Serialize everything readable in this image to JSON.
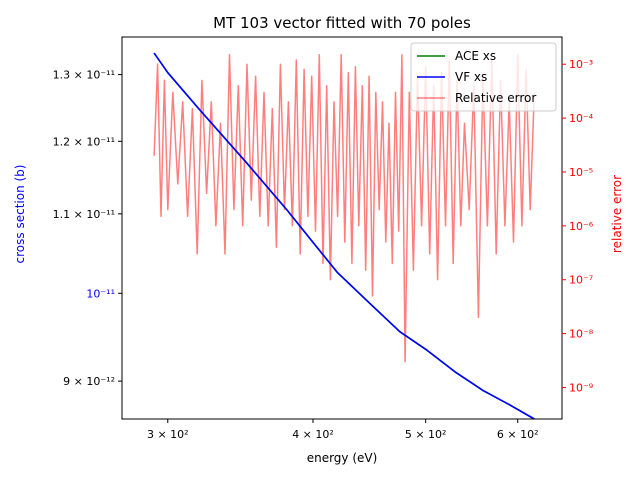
{
  "chart_data": {
    "type": "line",
    "title": "MT 103 vector fitted with 70 poles",
    "xlabel": "energy (eV)",
    "ylabel_left": "cross section (b)",
    "ylabel_right": "relative error",
    "x_scale": "log",
    "y_left_scale": "log",
    "y_right_scale": "log",
    "xlim": [
      274,
      655
    ],
    "ylim_left": [
      8.6e-12,
      1.36e-11
    ],
    "ylim_right": [
      2.6e-10,
      0.0032
    ],
    "x_ticks": [
      {
        "value": 300,
        "label": "3 × 10²"
      },
      {
        "value": 400,
        "label": "4 × 10²"
      },
      {
        "value": 500,
        "label": "5 × 10²"
      },
      {
        "value": 600,
        "label": "6 × 10²"
      }
    ],
    "y_left_ticks": [
      {
        "value": 9e-12,
        "label": "9 × 10⁻¹²"
      },
      {
        "value": 1e-11,
        "label": "10⁻¹¹"
      },
      {
        "value": 1.1e-11,
        "label": "1.1 × 10⁻¹¹"
      },
      {
        "value": 1.2e-11,
        "label": "1.2 × 10⁻¹¹"
      },
      {
        "value": 1.3e-11,
        "label": "1.3 × 10⁻¹¹"
      }
    ],
    "y_right_ticks": [
      {
        "value": 1e-09,
        "label": "10⁻⁹"
      },
      {
        "value": 1e-08,
        "label": "10⁻⁸"
      },
      {
        "value": 1e-07,
        "label": "10⁻⁷"
      },
      {
        "value": 1e-06,
        "label": "10⁻⁶"
      },
      {
        "value": 1e-05,
        "label": "10⁻⁵"
      },
      {
        "value": 0.0001,
        "label": "10⁻⁴"
      },
      {
        "value": 0.001,
        "label": "10⁻³"
      }
    ],
    "series": [
      {
        "name": "ACE xs",
        "color": "#008000",
        "axis": "left",
        "x": [
          292,
          300,
          320,
          350,
          380,
          400,
          420,
          450,
          475,
          500,
          530,
          560,
          590,
          620
        ],
        "y": [
          1.334e-11,
          1.303e-11,
          1.245e-11,
          1.171e-11,
          1.105e-11,
          1.063e-11,
          1.025e-11,
          9.85e-12,
          9.55e-12,
          9.35e-12,
          9.1e-12,
          8.9e-12,
          8.75e-12,
          8.6e-12
        ]
      },
      {
        "name": "VF xs",
        "color": "#0000ff",
        "axis": "left",
        "x": [
          292,
          300,
          320,
          350,
          380,
          400,
          420,
          450,
          475,
          500,
          530,
          560,
          590,
          620
        ],
        "y": [
          1.334e-11,
          1.303e-11,
          1.245e-11,
          1.171e-11,
          1.105e-11,
          1.063e-11,
          1.025e-11,
          9.85e-12,
          9.55e-12,
          9.35e-12,
          9.1e-12,
          8.9e-12,
          8.75e-12,
          8.6e-12
        ]
      },
      {
        "name": "Relative error",
        "color": "#ff0000",
        "opacity": 0.5,
        "axis": "right",
        "x": [
          292,
          294,
          296,
          298,
          300,
          303,
          306,
          309,
          312,
          315,
          318,
          321,
          324,
          327,
          330,
          333,
          336,
          339,
          342,
          345,
          348,
          351,
          354,
          357,
          360,
          363,
          366,
          369,
          372,
          375,
          378,
          381,
          384,
          387,
          390,
          393,
          396,
          399,
          402,
          405,
          408,
          411,
          414,
          417,
          420,
          423,
          426,
          429,
          432,
          435,
          438,
          441,
          444,
          447,
          450,
          453,
          456,
          459,
          462,
          465,
          468,
          471,
          474,
          477,
          480,
          484,
          488,
          492,
          496,
          500,
          504,
          508,
          512,
          516,
          520,
          524,
          528,
          532,
          536,
          540,
          545,
          550,
          555,
          560,
          565,
          570,
          575,
          580,
          585,
          590,
          595,
          600,
          605,
          610,
          615,
          620
        ],
        "y": [
          2e-05,
          0.001,
          1.5e-06,
          0.0005,
          2e-06,
          0.0003,
          6e-06,
          0.0002,
          1.5e-06,
          0.00015,
          3e-07,
          0.0005,
          4e-06,
          0.0002,
          1e-06,
          8e-05,
          3e-07,
          0.0015,
          2e-06,
          0.0004,
          1e-06,
          0.001,
          3e-06,
          0.0006,
          1.5e-06,
          0.0003,
          1e-06,
          0.00015,
          4e-07,
          0.001,
          2e-06,
          0.0002,
          1e-06,
          0.0012,
          3e-07,
          0.0008,
          1.5e-06,
          0.0006,
          8e-07,
          0.0015,
          2e-07,
          0.0004,
          1e-07,
          0.0002,
          1.5e-06,
          0.0015,
          5e-07,
          0.0007,
          2e-07,
          0.0009,
          1e-06,
          0.0004,
          1.5e-07,
          0.0006,
          5e-08,
          0.0003,
          2e-06,
          0.0002,
          5e-07,
          8e-05,
          2e-07,
          0.0003,
          8e-07,
          0.0015,
          3e-09,
          0.0003,
          1.5e-07,
          0.0006,
          1e-06,
          0.0009,
          3e-07,
          0.0004,
          1e-07,
          0.0007,
          1e-06,
          0.0012,
          2e-07,
          0.0005,
          1e-06,
          8e-05,
          2e-06,
          0.0004,
          2e-08,
          0.0006,
          1e-06,
          0.0012,
          3e-07,
          0.0005,
          1e-06,
          0.0002,
          5e-07,
          0.0015,
          1e-06,
          0.0008,
          2e-06,
          0.0003
        ]
      }
    ],
    "legend": {
      "position": "top-right",
      "entries": [
        "ACE xs",
        "VF xs",
        "Relative error"
      ]
    },
    "colors": {
      "left_axis": "#0000ff",
      "right_axis": "#ff0000",
      "axes": "#000000"
    }
  }
}
